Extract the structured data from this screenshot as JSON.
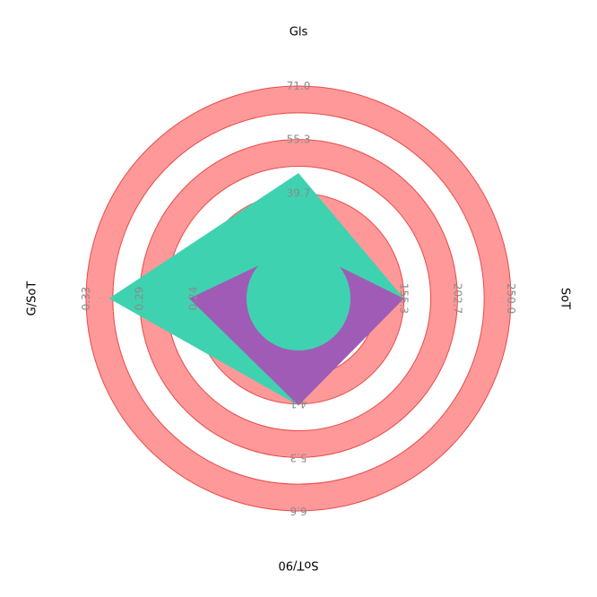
{
  "chart_data": {
    "type": "radar",
    "axes": [
      {
        "name": "Gls",
        "ticks": [
          "39.7",
          "55.3",
          "71.0"
        ],
        "min": 24.0,
        "max": 71.0,
        "reversed": false
      },
      {
        "name": "SoT",
        "ticks": [
          "155.3",
          "202.7",
          "250.0"
        ],
        "min": 108.0,
        "max": 250.0,
        "reversed": false
      },
      {
        "name": "SoT/90",
        "ticks": [
          "4.1",
          "5.3",
          "6.6"
        ],
        "min": 2.8,
        "max": 6.6,
        "reversed": false
      },
      {
        "name": "G/SoT",
        "ticks": [
          "0.24",
          "0.29",
          "0.33"
        ],
        "min": 0.19,
        "max": 0.33,
        "reversed": false
      }
    ],
    "series": [
      {
        "values": [
          45.5,
          155.3,
          4.1,
          0.31
        ]
      },
      {
        "values": [
          24.0,
          155.3,
          4.1,
          0.24
        ]
      }
    ],
    "colors": {
      "ring": "#ff9999",
      "ring_edge": "#e84a4a",
      "series_a": "#3fd2b0",
      "series_b": "#a05bb6"
    }
  }
}
